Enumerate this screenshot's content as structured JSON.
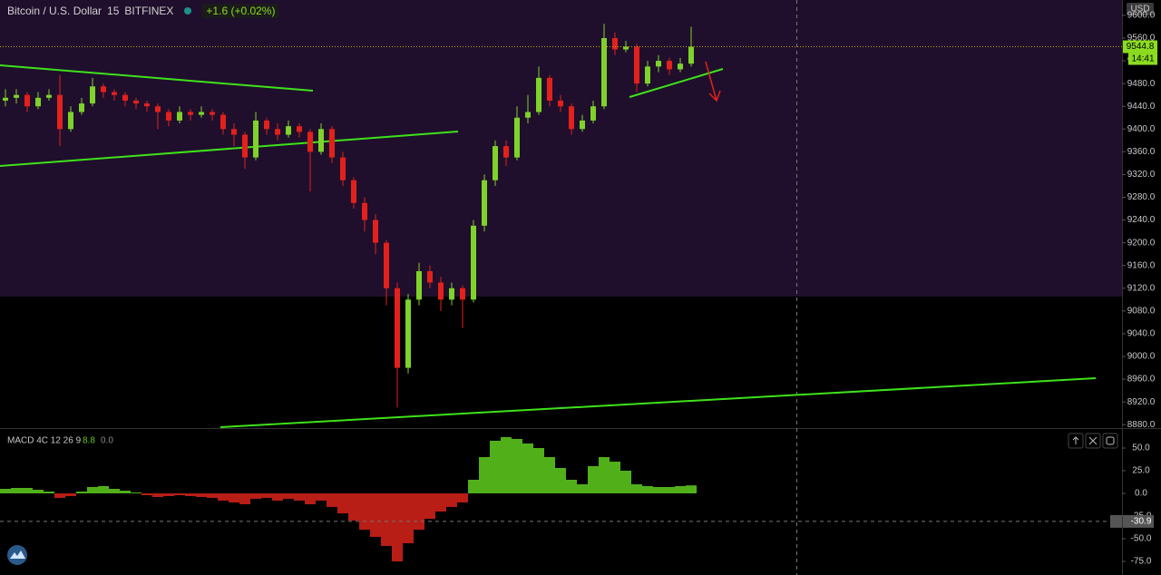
{
  "chart_data": [
    {
      "type": "candlestick",
      "title": "Bitcoin / U.S. Dollar",
      "interval": "15",
      "exchange": "BITFINEX",
      "change": "+1.6 (+0.02%)",
      "currency": "USD",
      "last_price": 9544.8,
      "countdown": "14:41",
      "up_color": "#7fd22a",
      "down_color": "#e3211c",
      "open": [
        9450,
        9455,
        9460,
        9440,
        9455,
        9460,
        9400,
        9430,
        9445,
        9475,
        9465,
        9460,
        9450,
        9445,
        9440,
        9430,
        9415,
        9430,
        9425,
        9430,
        9425,
        9400,
        9390,
        9350,
        9415,
        9400,
        9390,
        9405,
        9395,
        9360,
        9400,
        9350,
        9310,
        9270,
        9240,
        9200,
        9120,
        8980,
        9100,
        9150,
        9130,
        9100,
        9120,
        9100,
        9230,
        9310,
        9370,
        9350,
        9420,
        9430,
        9490,
        9450,
        9440,
        9400,
        9415,
        9440,
        9560,
        9540,
        9545,
        9480,
        9510,
        9520,
        9505,
        9515
      ],
      "high": [
        9470,
        9470,
        9465,
        9465,
        9470,
        9495,
        9440,
        9455,
        9490,
        9480,
        9470,
        9465,
        9455,
        9450,
        9445,
        9435,
        9440,
        9435,
        9440,
        9435,
        9430,
        9410,
        9395,
        9430,
        9420,
        9410,
        9415,
        9410,
        9400,
        9410,
        9405,
        9360,
        9315,
        9280,
        9250,
        9205,
        9130,
        9110,
        9165,
        9160,
        9140,
        9130,
        9125,
        9240,
        9320,
        9380,
        9380,
        9440,
        9460,
        9510,
        9495,
        9460,
        9445,
        9425,
        9450,
        9585,
        9570,
        9555,
        9550,
        9520,
        9530,
        9525,
        9525,
        9580
      ],
      "low": [
        9440,
        9445,
        9430,
        9435,
        9450,
        9370,
        9395,
        9425,
        9440,
        9455,
        9450,
        9440,
        9435,
        9430,
        9400,
        9405,
        9410,
        9415,
        9420,
        9415,
        9390,
        9370,
        9330,
        9345,
        9390,
        9380,
        9385,
        9385,
        9290,
        9355,
        9340,
        9300,
        9260,
        9220,
        9180,
        9090,
        8910,
        8970,
        9090,
        9120,
        9080,
        9090,
        9050,
        9095,
        9220,
        9300,
        9335,
        9345,
        9410,
        9425,
        9440,
        9430,
        9390,
        9395,
        9410,
        9435,
        9530,
        9535,
        9465,
        9475,
        9500,
        9495,
        9500,
        9510
      ],
      "close": [
        9455,
        9460,
        9440,
        9455,
        9460,
        9400,
        9430,
        9445,
        9475,
        9465,
        9460,
        9450,
        9445,
        9440,
        9430,
        9415,
        9430,
        9425,
        9430,
        9425,
        9400,
        9390,
        9350,
        9415,
        9400,
        9390,
        9405,
        9395,
        9360,
        9400,
        9350,
        9310,
        9270,
        9240,
        9200,
        9120,
        8980,
        9100,
        9150,
        9130,
        9100,
        9120,
        9100,
        9230,
        9310,
        9370,
        9350,
        9420,
        9430,
        9490,
        9450,
        9440,
        9400,
        9415,
        9440,
        9560,
        9540,
        9545,
        9480,
        9510,
        9520,
        9505,
        9515,
        9544.8
      ],
      "ylim": [
        8874,
        9627
      ],
      "yticks": [
        {
          "value": 8880,
          "label": "8880.0"
        },
        {
          "value": 8920,
          "label": "8920.0"
        },
        {
          "value": 8960,
          "label": "8960.0"
        },
        {
          "value": 9000,
          "label": "9000.0"
        },
        {
          "value": 9040,
          "label": "9040.0"
        },
        {
          "value": 9080,
          "label": "9080.0"
        },
        {
          "value": 9120,
          "label": "9120.0"
        },
        {
          "value": 9160,
          "label": "9160.0"
        },
        {
          "value": 9200,
          "label": "9200.0"
        },
        {
          "value": 9240,
          "label": "9240.0"
        },
        {
          "value": 9280,
          "label": "9280.0"
        },
        {
          "value": 9320,
          "label": "9320.0"
        },
        {
          "value": 9360,
          "label": "9360.0"
        },
        {
          "value": 9400,
          "label": "9400.0"
        },
        {
          "value": 9440,
          "label": "9440.0"
        },
        {
          "value": 9480,
          "label": "9480.0"
        },
        {
          "value": 9520,
          "label": "9520.0"
        },
        {
          "value": 9560,
          "label": "9560.0"
        },
        {
          "value": 9600,
          "label": "9600.0"
        }
      ]
    },
    {
      "type": "bar",
      "title": "MACD 4C 12 26 9",
      "legend_values": [
        8.8,
        {
          "value": 0,
          "label": "0.0"
        }
      ],
      "crosshair_value": -30.9,
      "up_color": "#5fcf1e",
      "down_color": "#d8221a",
      "values": [
        5,
        6,
        6,
        4,
        2,
        -5,
        -3,
        2,
        7,
        8,
        5,
        3,
        1,
        -2,
        -4,
        -3,
        -2,
        -3,
        -4,
        -5,
        -8,
        -10,
        -12,
        -6,
        -5,
        -8,
        -6,
        -8,
        -12,
        -8,
        -15,
        -22,
        -30,
        -40,
        -48,
        -58,
        -75,
        -55,
        -40,
        -28,
        -20,
        -15,
        -10,
        15,
        40,
        58,
        62,
        60,
        55,
        50,
        40,
        28,
        15,
        10,
        30,
        40,
        35,
        25,
        10,
        8,
        7,
        7,
        8,
        8.8
      ],
      "ylim": [
        -90,
        70
      ],
      "yticks": [
        {
          "value": 50,
          "label": "50.0"
        },
        {
          "value": 25,
          "label": "25.0"
        },
        {
          "value": 0,
          "label": "0.0"
        },
        {
          "value": -25,
          "label": "-25.0"
        },
        {
          "value": -50,
          "label": "-50.0"
        },
        {
          "value": -75,
          "label": "-75.0"
        }
      ]
    }
  ]
}
